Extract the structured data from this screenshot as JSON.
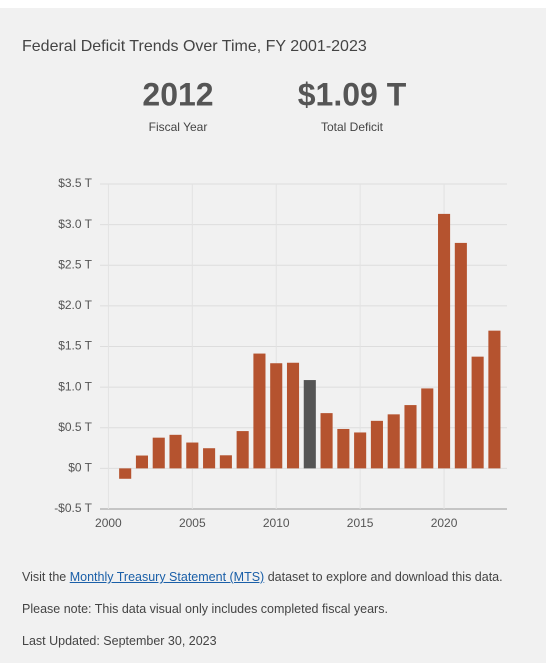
{
  "header": {
    "title": "Federal Deficit Trends Over Time, FY 2001-2023"
  },
  "summary": {
    "year": "2012",
    "year_label": "Fiscal Year",
    "deficit": "$1.09 T",
    "deficit_label": "Total Deficit"
  },
  "chart_data": {
    "type": "bar",
    "x": [
      2001,
      2002,
      2003,
      2004,
      2005,
      2006,
      2007,
      2008,
      2009,
      2010,
      2011,
      2012,
      2013,
      2014,
      2015,
      2016,
      2017,
      2018,
      2019,
      2020,
      2021,
      2022,
      2023
    ],
    "values": [
      -0.128,
      0.158,
      0.378,
      0.413,
      0.318,
      0.248,
      0.161,
      0.459,
      1.413,
      1.294,
      1.3,
      1.087,
      0.68,
      0.485,
      0.442,
      0.585,
      0.665,
      0.779,
      0.984,
      3.132,
      2.775,
      1.375,
      1.695
    ],
    "color": "#b5532f",
    "highlight_color": "#555555",
    "xlim": [
      1999.5,
      2023.75
    ],
    "xticks": [
      2000,
      2005,
      2010,
      2015,
      2020
    ],
    "ylim": [
      -0.5,
      3.5
    ],
    "yticks": [
      {
        "value": -0.5,
        "label": "-$0.5 T"
      },
      {
        "value": 0,
        "label": "$0 T"
      },
      {
        "value": 0.5,
        "label": "$0.5 T"
      },
      {
        "value": 1,
        "label": "$1.0 T"
      },
      {
        "value": 1.5,
        "label": "$1.5 T"
      },
      {
        "value": 2,
        "label": "$2.0 T"
      },
      {
        "value": 2.5,
        "label": "$2.5 T"
      },
      {
        "value": 3,
        "label": "$3.0 T"
      },
      {
        "value": 3.5,
        "label": "$3.5 T"
      }
    ],
    "grid": true
  },
  "footer": {
    "visit_pre": "Visit the ",
    "link": "Monthly Treasury Statement (MTS)",
    "visit_post": " dataset to explore and download this data.",
    "note": "Please note: This data visual only includes completed fiscal years.",
    "updated": "Last Updated: September 30, 2023"
  }
}
